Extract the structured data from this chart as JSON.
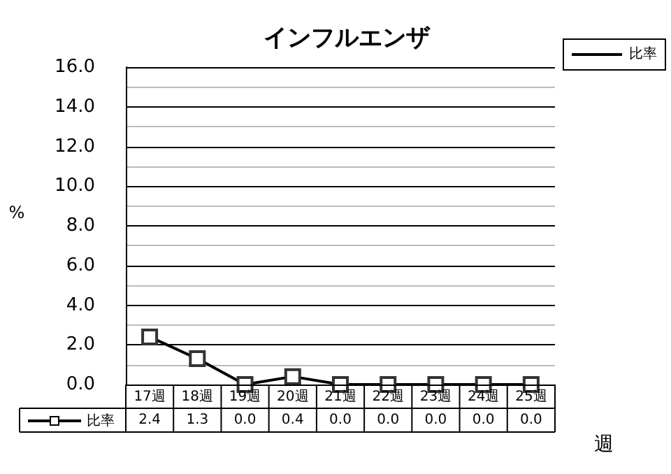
{
  "chart_data": {
    "type": "line",
    "title": "インフルエンザ",
    "xlabel": "週",
    "ylabel": "%",
    "categories": [
      "17週",
      "18週",
      "19週",
      "20週",
      "21週",
      "22週",
      "23週",
      "24週",
      "25週"
    ],
    "series": [
      {
        "name": "比率",
        "color": "#000000",
        "values": [
          2.4,
          1.3,
          0.0,
          0.4,
          0.0,
          0.0,
          0.0,
          0.0,
          0.0
        ],
        "value_labels": [
          "2.4",
          "1.3",
          "0.0",
          "0.4",
          "0.0",
          "0.0",
          "0.0",
          "0.0",
          "0.0"
        ]
      }
    ],
    "ylim": [
      0,
      16
    ],
    "yticks": [
      {
        "value": 0,
        "label": "0.0"
      },
      {
        "value": 2,
        "label": "2.0"
      },
      {
        "value": 4,
        "label": "4.0"
      },
      {
        "value": 6,
        "label": "6.0"
      },
      {
        "value": 8,
        "label": "8.0"
      },
      {
        "value": 10,
        "label": "10.0"
      },
      {
        "value": 12,
        "label": "12.0"
      },
      {
        "value": 14,
        "label": "14.0"
      },
      {
        "value": 16,
        "label": "16.0"
      }
    ],
    "grid": true,
    "legend": "bottom left",
    "marker": "square",
    "line_style": "solid"
  }
}
